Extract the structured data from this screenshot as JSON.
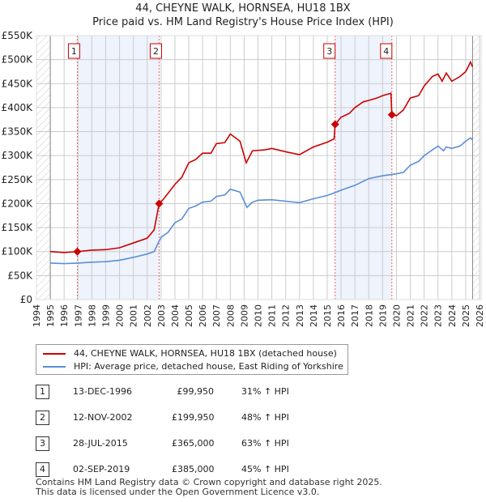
{
  "chart_data": {
    "type": "line",
    "title": "44, CHEYNE WALK, HORNSEA, HU18 1BX",
    "subtitle": "Price paid vs. HM Land Registry's House Price Index (HPI)",
    "xlim": [
      1994,
      2026
    ],
    "ylim": [
      0,
      550000
    ],
    "yticks": [
      {
        "v": 0,
        "l": "£0"
      },
      {
        "v": 50000,
        "l": "£50K"
      },
      {
        "v": 100000,
        "l": "£100K"
      },
      {
        "v": 150000,
        "l": "£150K"
      },
      {
        "v": 200000,
        "l": "£200K"
      },
      {
        "v": 250000,
        "l": "£250K"
      },
      {
        "v": 300000,
        "l": "£300K"
      },
      {
        "v": 350000,
        "l": "£350K"
      },
      {
        "v": 400000,
        "l": "£400K"
      },
      {
        "v": 450000,
        "l": "£450K"
      },
      {
        "v": 500000,
        "l": "£500K"
      },
      {
        "v": 550000,
        "l": "£550K"
      }
    ],
    "xticks": [
      "1994",
      "1995",
      "1996",
      "1997",
      "1998",
      "1999",
      "2000",
      "2001",
      "2002",
      "2003",
      "2004",
      "2005",
      "2006",
      "2007",
      "2008",
      "2009",
      "2010",
      "2011",
      "2012",
      "2013",
      "2014",
      "2015",
      "2016",
      "2017",
      "2018",
      "2019",
      "2020",
      "2021",
      "2022",
      "2023",
      "2024",
      "2025",
      "2026"
    ],
    "series": [
      {
        "name": "44, CHEYNE WALK, HORNSEA, HU18 1BX (detached house)",
        "color": "#cc0000",
        "points": [
          [
            1995,
            100000
          ],
          [
            1996,
            98000
          ],
          [
            1996.95,
            99950
          ],
          [
            1998,
            103000
          ],
          [
            1999,
            104000
          ],
          [
            2000,
            108000
          ],
          [
            2001,
            118000
          ],
          [
            2002,
            128000
          ],
          [
            2002.5,
            145000
          ],
          [
            2002.86,
            199950
          ],
          [
            2003.2,
            210000
          ],
          [
            2004,
            240000
          ],
          [
            2004.5,
            255000
          ],
          [
            2005,
            285000
          ],
          [
            2005.5,
            292000
          ],
          [
            2006,
            305000
          ],
          [
            2006.6,
            305000
          ],
          [
            2007,
            325000
          ],
          [
            2007.6,
            327000
          ],
          [
            2008,
            345000
          ],
          [
            2008.7,
            330000
          ],
          [
            2009.0,
            300000
          ],
          [
            2009.15,
            285000
          ],
          [
            2009.6,
            310000
          ],
          [
            2010.5,
            312000
          ],
          [
            2011,
            315000
          ],
          [
            2012,
            308000
          ],
          [
            2013,
            302000
          ],
          [
            2014,
            318000
          ],
          [
            2015,
            328000
          ],
          [
            2015.5,
            335000
          ],
          [
            2015.57,
            365000
          ],
          [
            2016,
            380000
          ],
          [
            2016.6,
            388000
          ],
          [
            2017,
            400000
          ],
          [
            2017.6,
            412000
          ],
          [
            2018,
            415000
          ],
          [
            2018.6,
            420000
          ],
          [
            2019,
            425000
          ],
          [
            2019.6,
            430000
          ],
          [
            2019.67,
            385000
          ],
          [
            2020,
            383000
          ],
          [
            2020.5,
            395000
          ],
          [
            2021,
            420000
          ],
          [
            2021.6,
            425000
          ],
          [
            2022,
            445000
          ],
          [
            2022.6,
            465000
          ],
          [
            2023,
            470000
          ],
          [
            2023.3,
            455000
          ],
          [
            2023.6,
            472000
          ],
          [
            2024,
            455000
          ],
          [
            2024.6,
            465000
          ],
          [
            2025,
            475000
          ],
          [
            2025.35,
            495000
          ],
          [
            2025.5,
            485000
          ]
        ]
      },
      {
        "name": "HPI: Average price, detached house, East Riding of Yorkshire",
        "color": "#5b8ed6",
        "points": [
          [
            1995,
            76000
          ],
          [
            1996,
            75000
          ],
          [
            1997,
            76000
          ],
          [
            1998,
            78000
          ],
          [
            1999,
            79000
          ],
          [
            2000,
            82000
          ],
          [
            2001,
            88000
          ],
          [
            2002,
            95000
          ],
          [
            2002.5,
            100000
          ],
          [
            2003,
            130000
          ],
          [
            2003.5,
            140000
          ],
          [
            2004,
            160000
          ],
          [
            2004.5,
            168000
          ],
          [
            2005,
            190000
          ],
          [
            2005.5,
            195000
          ],
          [
            2006,
            203000
          ],
          [
            2006.6,
            205000
          ],
          [
            2007,
            215000
          ],
          [
            2007.6,
            218000
          ],
          [
            2008,
            230000
          ],
          [
            2008.7,
            224000
          ],
          [
            2009.0,
            205000
          ],
          [
            2009.2,
            192000
          ],
          [
            2009.6,
            203000
          ],
          [
            2010,
            207000
          ],
          [
            2011,
            208000
          ],
          [
            2012,
            205000
          ],
          [
            2013,
            202000
          ],
          [
            2014,
            210000
          ],
          [
            2015,
            217000
          ],
          [
            2015.57,
            223000
          ],
          [
            2016,
            228000
          ],
          [
            2017,
            238000
          ],
          [
            2018,
            252000
          ],
          [
            2019,
            258000
          ],
          [
            2020,
            262000
          ],
          [
            2020.5,
            265000
          ],
          [
            2021,
            280000
          ],
          [
            2021.6,
            288000
          ],
          [
            2022,
            300000
          ],
          [
            2022.6,
            312000
          ],
          [
            2023,
            320000
          ],
          [
            2023.4,
            310000
          ],
          [
            2023.6,
            318000
          ],
          [
            2024,
            315000
          ],
          [
            2024.6,
            320000
          ],
          [
            2025,
            330000
          ],
          [
            2025.35,
            337000
          ],
          [
            2025.5,
            333000
          ]
        ]
      }
    ],
    "sales": [
      {
        "n": "1",
        "x": 1996.95,
        "y": 99950
      },
      {
        "n": "2",
        "x": 2002.86,
        "y": 199950
      },
      {
        "n": "3",
        "x": 2015.57,
        "y": 365000
      },
      {
        "n": "4",
        "x": 2019.67,
        "y": 385000
      }
    ],
    "shaded": [
      [
        1996.95,
        2002.86
      ],
      [
        2015.57,
        2019.67
      ]
    ],
    "hatch": [
      [
        1994,
        1995
      ],
      [
        2025.5,
        2026
      ]
    ]
  },
  "legend": {
    "red": "44, CHEYNE WALK, HORNSEA, HU18 1BX (detached house)",
    "blue": "HPI: Average price, detached house, East Riding of Yorkshire"
  },
  "table": [
    {
      "n": "1",
      "date": "13-DEC-1996",
      "price": "£99,950",
      "hpi": "31% ↑ HPI"
    },
    {
      "n": "2",
      "date": "12-NOV-2002",
      "price": "£199,950",
      "hpi": "48% ↑ HPI"
    },
    {
      "n": "3",
      "date": "28-JUL-2015",
      "price": "£365,000",
      "hpi": "63% ↑ HPI"
    },
    {
      "n": "4",
      "date": "02-SEP-2019",
      "price": "£385,000",
      "hpi": "45% ↑ HPI"
    }
  ],
  "footer": {
    "line1": "Contains HM Land Registry data © Crown copyright and database right 2025.",
    "line2": "This data is licensed under the Open Government Licence v3.0."
  }
}
